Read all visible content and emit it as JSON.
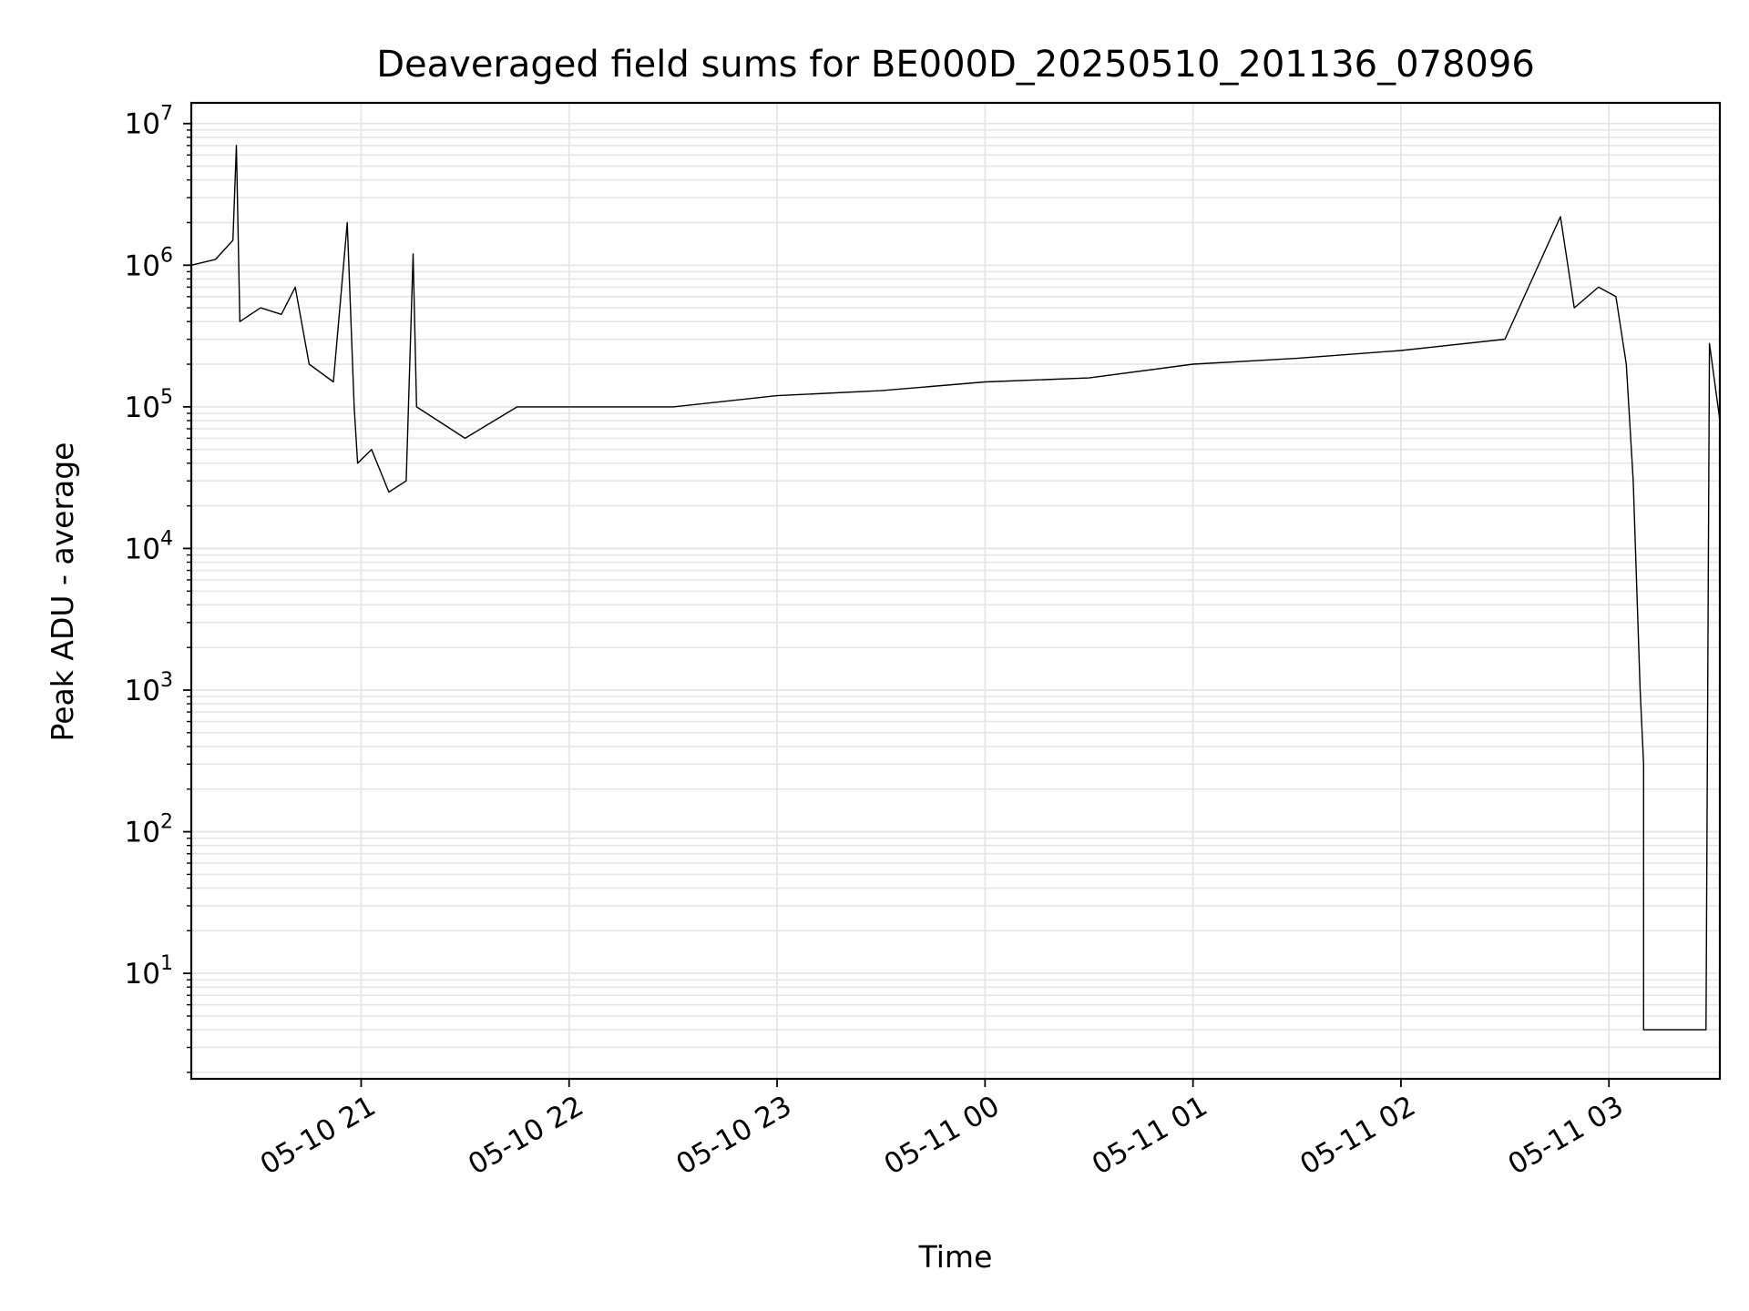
{
  "chart_data": {
    "type": "line",
    "title": "Deaveraged field sums for BE000D_20250510_201136_078096",
    "xlabel": "Time",
    "ylabel": "Peak ADU - average",
    "yscale": "log",
    "ylim": [
      1.8,
      14000000
    ],
    "xlim": [
      "2025-05-10 20:11",
      "2025-05-11 03:32"
    ],
    "grid": true,
    "grid_color": "#e6e6e6",
    "line_color": "#000000",
    "x_ticks": [
      {
        "t": "2025-05-10 21:00",
        "label": "05-10 21"
      },
      {
        "t": "2025-05-10 22:00",
        "label": "05-10 22"
      },
      {
        "t": "2025-05-10 23:00",
        "label": "05-10 23"
      },
      {
        "t": "2025-05-11 00:00",
        "label": "05-11 00"
      },
      {
        "t": "2025-05-11 01:00",
        "label": "05-11 01"
      },
      {
        "t": "2025-05-11 02:00",
        "label": "05-11 02"
      },
      {
        "t": "2025-05-11 03:00",
        "label": "05-11 03"
      }
    ],
    "y_ticks": [
      {
        "value": 10,
        "mantissa": "10",
        "exponent": "1"
      },
      {
        "value": 100,
        "mantissa": "10",
        "exponent": "2"
      },
      {
        "value": 1000,
        "mantissa": "10",
        "exponent": "3"
      },
      {
        "value": 10000,
        "mantissa": "10",
        "exponent": "4"
      },
      {
        "value": 100000,
        "mantissa": "10",
        "exponent": "5"
      },
      {
        "value": 1000000,
        "mantissa": "10",
        "exponent": "6"
      },
      {
        "value": 10000000,
        "mantissa": "10",
        "exponent": "7"
      }
    ],
    "series": [
      {
        "points": [
          [
            "2025-05-10 20:11",
            1000000
          ],
          [
            "2025-05-10 20:18",
            1100000
          ],
          [
            "2025-05-10 20:23",
            1500000
          ],
          [
            "2025-05-10 20:24",
            7000000
          ],
          [
            "2025-05-10 20:25",
            400000
          ],
          [
            "2025-05-10 20:31",
            500000
          ],
          [
            "2025-05-10 20:37",
            450000
          ],
          [
            "2025-05-10 20:41",
            700000
          ],
          [
            "2025-05-10 20:45",
            200000
          ],
          [
            "2025-05-10 20:52",
            150000
          ],
          [
            "2025-05-10 20:56",
            2000000
          ],
          [
            "2025-05-10 20:58",
            100000
          ],
          [
            "2025-05-10 20:59",
            40000
          ],
          [
            "2025-05-10 21:03",
            50000
          ],
          [
            "2025-05-10 21:08",
            25000
          ],
          [
            "2025-05-10 21:13",
            30000
          ],
          [
            "2025-05-10 21:15",
            1200000
          ],
          [
            "2025-05-10 21:16",
            100000
          ],
          [
            "2025-05-10 21:30",
            60000
          ],
          [
            "2025-05-10 21:45",
            100000
          ],
          [
            "2025-05-10 22:00",
            100000
          ],
          [
            "2025-05-10 22:30",
            100000
          ],
          [
            "2025-05-10 23:00",
            120000
          ],
          [
            "2025-05-10 23:30",
            130000
          ],
          [
            "2025-05-11 00:00",
            150000
          ],
          [
            "2025-05-11 00:30",
            160000
          ],
          [
            "2025-05-11 01:00",
            200000
          ],
          [
            "2025-05-11 01:30",
            220000
          ],
          [
            "2025-05-11 02:00",
            250000
          ],
          [
            "2025-05-11 02:30",
            300000
          ],
          [
            "2025-05-11 02:46",
            2200000
          ],
          [
            "2025-05-11 02:50",
            500000
          ],
          [
            "2025-05-11 02:57",
            700000
          ],
          [
            "2025-05-11 03:02",
            600000
          ],
          [
            "2025-05-11 03:05",
            200000
          ],
          [
            "2025-05-11 03:07",
            30000
          ],
          [
            "2025-05-11 03:09",
            1000
          ],
          [
            "2025-05-11 03:10",
            300
          ],
          [
            "2025-05-11 03:10",
            4
          ],
          [
            "2025-05-11 03:28",
            4
          ],
          [
            "2025-05-11 03:29",
            280000
          ],
          [
            "2025-05-11 03:32",
            80000
          ]
        ]
      }
    ]
  }
}
